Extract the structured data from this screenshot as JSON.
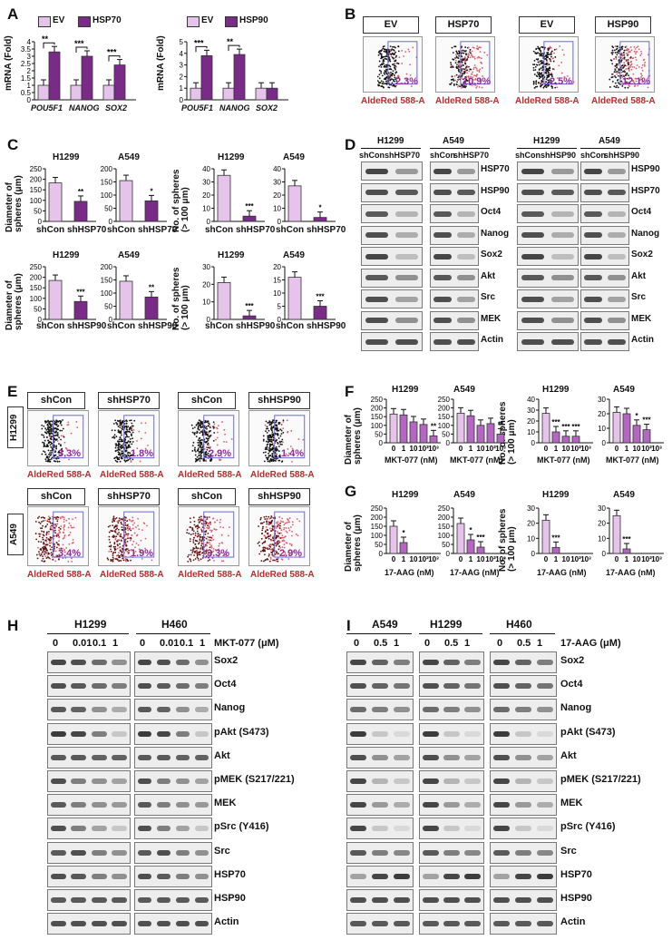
{
  "panels": {
    "A": "A",
    "B": "B",
    "C": "C",
    "D": "D",
    "E": "E",
    "F": "F",
    "G": "G",
    "H": "H",
    "I": "I"
  },
  "panelA": {
    "legend_left": [
      "EV",
      "HSP70"
    ],
    "legend_right": [
      "EV",
      "HSP90"
    ],
    "ylabel": "mRNA (Fold)",
    "genes": [
      "POU5F1",
      "NANOG",
      "SOX2"
    ]
  },
  "panelB": {
    "labels": [
      "EV",
      "HSP70",
      "EV",
      "HSP90"
    ],
    "percents": [
      "2.3%",
      "10.9%",
      "2.5%",
      "12.1%"
    ],
    "xlabel": "AldeRed 588-A"
  },
  "panelC": {
    "titles_top": [
      "H1299",
      "A549",
      "H1299",
      "A549"
    ],
    "titles_bottom": [
      "H1299",
      "A549",
      "H1299",
      "A549"
    ],
    "ylabel_diam": "Diameter of spheres (μm)",
    "ylabel_num": "No. of spheres (> 100 μm)",
    "x_top": [
      "shCon",
      "shHSP70"
    ],
    "x_bottom": [
      "shCon",
      "shHSP90"
    ]
  },
  "panelD": {
    "cells": [
      "H1299",
      "A549",
      "H1299",
      "A549"
    ],
    "shleft": [
      "shCon",
      "shHSP70",
      "shCon",
      "shHSP70"
    ],
    "shright": [
      "shCon",
      "shHSP90",
      "shCon",
      "shHSP90"
    ],
    "labels_left": [
      "HSP70",
      "HSP90",
      "Oct4",
      "Nanog",
      "Sox2",
      "Akt",
      "Src",
      "MEK",
      "Actin"
    ],
    "labels_right": [
      "HSP90",
      "HSP70",
      "Oct4",
      "Nanog",
      "Sox2",
      "Akt",
      "Src",
      "MEK",
      "Actin"
    ]
  },
  "panelE": {
    "row_labels": [
      "H1299",
      "A549"
    ],
    "headers": [
      "shCon",
      "shHSP70",
      "shCon",
      "shHSP90"
    ],
    "percents_top": [
      "3.3%",
      "1.8%",
      "2.9%",
      "1.4%"
    ],
    "percents_bottom": [
      "3.4%",
      "1.9%",
      "3.3%",
      "2.9%"
    ],
    "xlabel": "AldeRed 588-A"
  },
  "panelF": {
    "titles": [
      "H1299",
      "A549",
      "H1299",
      "A549"
    ],
    "ylabel_diam": "Diameter of spheres (μm)",
    "ylabel_num": "No. of spheres (> 100 μm)",
    "xticks": [
      "0",
      "1",
      "10",
      "10²",
      "10³"
    ],
    "xlabel": "MKT-077 (nM)"
  },
  "panelG": {
    "titles": [
      "H1299",
      "A549",
      "H1299",
      "A549"
    ],
    "xlabel": "17-AAG (nM)"
  },
  "panelH": {
    "cells": [
      "H1299",
      "H460"
    ],
    "doses": [
      "0",
      "0.01",
      "0.1",
      "1"
    ],
    "drug": "MKT-077 (μM)",
    "labels": [
      "Sox2",
      "Oct4",
      "Nanog",
      "pAkt (S473)",
      "Akt",
      "pMEK (S217/221)",
      "MEK",
      "pSrc (Y416)",
      "Src",
      "HSP70",
      "HSP90",
      "Actin"
    ]
  },
  "panelI": {
    "cells": [
      "A549",
      "H1299",
      "H460"
    ],
    "doses": [
      "0",
      "0.5",
      "1"
    ],
    "drug": "17-AAG (μM)",
    "labels": [
      "Sox2",
      "Oct4",
      "Nanog",
      "pAkt (S473)",
      "Akt",
      "pMEK (S217/221)",
      "MEK",
      "pSrc (Y416)",
      "Src",
      "HSP70",
      "HSP90",
      "Actin"
    ]
  },
  "colors": {
    "light": "#e6c3ea",
    "dark": "#7a2a87",
    "red": "#c0282c",
    "purple": "#8e2b9b"
  },
  "chart_data": [
    {
      "type": "bar",
      "title": "A left",
      "categories": [
        "POU5F1",
        "NANOG",
        "SOX2"
      ],
      "series": [
        {
          "name": "EV",
          "values": [
            1.0,
            1.0,
            1.0
          ]
        },
        {
          "name": "HSP70",
          "values": [
            3.3,
            3.0,
            2.4
          ]
        }
      ],
      "ylabel": "mRNA (Fold)",
      "ylim": [
        0,
        4
      ],
      "yticks": [
        "0",
        "0.5",
        "1",
        "1.5",
        "2",
        "2.5",
        "3",
        "3.5",
        "4"
      ],
      "significance": [
        "**",
        "***",
        "***"
      ]
    },
    {
      "type": "bar",
      "title": "A right",
      "categories": [
        "POU5F1",
        "NANOG",
        "SOX2"
      ],
      "series": [
        {
          "name": "EV",
          "values": [
            1.0,
            1.0,
            1.0
          ]
        },
        {
          "name": "HSP90",
          "values": [
            3.8,
            3.9,
            1.0
          ]
        }
      ],
      "ylabel": "mRNA (Fold)",
      "ylim": [
        0,
        5
      ],
      "yticks": [
        "0",
        "1",
        "2",
        "3",
        "4",
        "5"
      ],
      "significance": [
        "***",
        "**",
        ""
      ]
    },
    {
      "type": "bar",
      "title": "C H1299 diameter",
      "categories": [
        "shCon",
        "shHSP70"
      ],
      "values": [
        183,
        95
      ],
      "ylim": [
        0,
        250
      ],
      "yticks": [
        "0",
        "50",
        "100",
        "150",
        "200",
        "250"
      ],
      "significance": [
        "",
        "**"
      ]
    },
    {
      "type": "bar",
      "title": "C A549 diameter",
      "categories": [
        "shCon",
        "shHSP70"
      ],
      "values": [
        155,
        78
      ],
      "ylim": [
        0,
        200
      ],
      "yticks": [
        "0",
        "50",
        "100",
        "150",
        "200"
      ],
      "significance": [
        "",
        "*"
      ]
    },
    {
      "type": "bar",
      "title": "C H1299 spheres",
      "categories": [
        "shCon",
        "shHSP70"
      ],
      "values": [
        35,
        4
      ],
      "ylim": [
        0,
        40
      ],
      "yticks": [
        "0",
        "10",
        "20",
        "30",
        "40"
      ],
      "significance": [
        "",
        "***"
      ]
    },
    {
      "type": "bar",
      "title": "C A549 spheres",
      "categories": [
        "shCon",
        "shHSP70"
      ],
      "values": [
        27,
        3
      ],
      "ylim": [
        0,
        40
      ],
      "yticks": [
        "0",
        "10",
        "20",
        "30",
        "40"
      ],
      "significance": [
        "",
        "*"
      ]
    },
    {
      "type": "bar",
      "title": "C H1299 diameter (HSP90)",
      "categories": [
        "shCon",
        "shHSP90"
      ],
      "values": [
        185,
        85
      ],
      "ylim": [
        0,
        250
      ],
      "yticks": [
        "0",
        "50",
        "100",
        "150",
        "200",
        "250"
      ],
      "significance": [
        "",
        "***"
      ]
    },
    {
      "type": "bar",
      "title": "C A549 diameter (HSP90)",
      "categories": [
        "shCon",
        "shHSP90"
      ],
      "values": [
        145,
        85
      ],
      "ylim": [
        0,
        200
      ],
      "yticks": [
        "0",
        "50",
        "100",
        "150",
        "200"
      ],
      "significance": [
        "",
        "**"
      ]
    },
    {
      "type": "bar",
      "title": "C H1299 spheres (HSP90)",
      "categories": [
        "shCon",
        "shHSP90"
      ],
      "values": [
        21,
        2
      ],
      "ylim": [
        0,
        30
      ],
      "yticks": [
        "0",
        "10",
        "20",
        "30"
      ],
      "significance": [
        "",
        "***"
      ]
    },
    {
      "type": "bar",
      "title": "C A549 spheres (HSP90)",
      "categories": [
        "shCon",
        "shHSP90"
      ],
      "values": [
        16,
        5
      ],
      "ylim": [
        0,
        20
      ],
      "yticks": [
        "0",
        "5",
        "10",
        "15",
        "20"
      ],
      "significance": [
        "",
        "***"
      ]
    },
    {
      "type": "bar",
      "title": "F H1299 diameter",
      "categories": [
        "0",
        "1",
        "10",
        "10²",
        "10³"
      ],
      "values": [
        165,
        160,
        120,
        105,
        40
      ],
      "ylim": [
        0,
        250
      ],
      "yticks": [
        "0",
        "50",
        "100",
        "150",
        "200",
        "250"
      ],
      "significance": [
        "",
        "",
        "",
        "",
        "**"
      ]
    },
    {
      "type": "bar",
      "title": "F A549 diameter",
      "categories": [
        "0",
        "1",
        "10",
        "10²",
        "10³"
      ],
      "values": [
        170,
        155,
        100,
        110,
        50
      ],
      "ylim": [
        0,
        250
      ],
      "yticks": [
        "0",
        "50",
        "100",
        "150",
        "200",
        "250"
      ],
      "significance": [
        "",
        "",
        "",
        "",
        "**"
      ]
    },
    {
      "type": "bar",
      "title": "F H1299 spheres",
      "categories": [
        "0",
        "1",
        "10",
        "10²",
        "10³"
      ],
      "values": [
        27,
        10,
        6,
        6,
        0
      ],
      "ylim": [
        0,
        40
      ],
      "yticks": [
        "0",
        "10",
        "20",
        "30",
        "40"
      ],
      "significance": [
        "",
        "***",
        "***",
        "***",
        ""
      ]
    },
    {
      "type": "bar",
      "title": "F A549 spheres",
      "categories": [
        "0",
        "1",
        "10",
        "10²",
        "10³"
      ],
      "values": [
        21,
        20,
        12,
        9,
        0
      ],
      "ylim": [
        0,
        30
      ],
      "yticks": [
        "0",
        "10",
        "20",
        "30"
      ],
      "significance": [
        "",
        "",
        "*",
        "***",
        ""
      ]
    },
    {
      "type": "bar",
      "title": "G H1299 diameter",
      "categories": [
        "0",
        "1",
        "10",
        "10²",
        "10³"
      ],
      "values": [
        150,
        60,
        0,
        0,
        0
      ],
      "ylim": [
        0,
        250
      ],
      "yticks": [
        "0",
        "50",
        "100",
        "150",
        "200",
        "250"
      ],
      "significance": [
        "",
        "*",
        "",
        "",
        ""
      ]
    },
    {
      "type": "bar",
      "title": "G A549 diameter",
      "categories": [
        "0",
        "1",
        "10",
        "10²",
        "10³"
      ],
      "values": [
        165,
        75,
        35,
        0,
        0
      ],
      "ylim": [
        0,
        250
      ],
      "yticks": [
        "0",
        "50",
        "100",
        "150",
        "200",
        "250"
      ],
      "significance": [
        "",
        "*",
        "***",
        "",
        ""
      ]
    },
    {
      "type": "bar",
      "title": "G H1299 spheres",
      "categories": [
        "0",
        "1",
        "10",
        "10²",
        "10³"
      ],
      "values": [
        22,
        4,
        0,
        0,
        0
      ],
      "ylim": [
        0,
        30
      ],
      "yticks": [
        "0",
        "10",
        "20",
        "30"
      ],
      "significance": [
        "",
        "***",
        "",
        "",
        ""
      ]
    },
    {
      "type": "bar",
      "title": "G A549 spheres",
      "categories": [
        "0",
        "1",
        "10",
        "10²",
        "10³"
      ],
      "values": [
        25,
        3,
        0,
        0,
        0
      ],
      "ylim": [
        0,
        30
      ],
      "yticks": [
        "0",
        "10",
        "20",
        "30"
      ],
      "significance": [
        "",
        "***",
        "",
        "",
        ""
      ]
    }
  ]
}
